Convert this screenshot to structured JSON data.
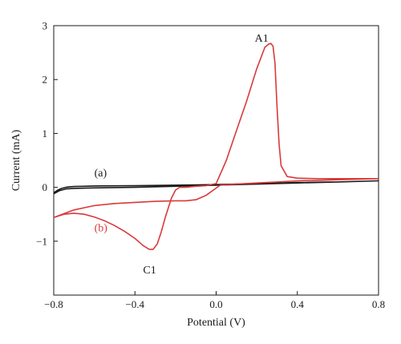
{
  "chart_data": {
    "type": "line",
    "xlabel": "Potential (V)",
    "ylabel": "Current (mA)",
    "xlim": [
      -0.8,
      0.8
    ],
    "ylim": [
      -2,
      3
    ],
    "xticks": [
      -0.8,
      -0.4,
      0.0,
      0.4,
      0.8
    ],
    "xtick_labels": [
      "−0.8",
      "−0.4",
      "0.0",
      "0.4",
      "0.8"
    ],
    "yticks": [
      -1,
      0,
      1,
      2,
      3
    ],
    "ytick_labels": [
      "−1",
      "0",
      "1",
      "2",
      "3"
    ],
    "grid": false,
    "series": [
      {
        "name": "(a)",
        "color": "#1a1a1a",
        "x": [
          -0.8,
          -0.78,
          -0.76,
          -0.74,
          -0.72,
          -0.7,
          -0.65,
          -0.6,
          -0.4,
          -0.2,
          0.0,
          0.2,
          0.4,
          0.6,
          0.8,
          0.6,
          0.4,
          0.2,
          0.0,
          -0.2,
          -0.4,
          -0.6,
          -0.7,
          -0.74,
          -0.77,
          -0.8
        ],
        "y": [
          -0.1,
          -0.05,
          -0.02,
          0.0,
          0.01,
          0.015,
          0.02,
          0.025,
          0.03,
          0.04,
          0.05,
          0.07,
          0.09,
          0.1,
          0.12,
          0.1,
          0.08,
          0.06,
          0.04,
          0.02,
          0.0,
          -0.01,
          -0.02,
          -0.03,
          -0.06,
          -0.12
        ],
        "label": "(a)",
        "label_x": -0.6,
        "label_y": 0.2
      },
      {
        "name": "(b)",
        "color": "#d93a3a",
        "x": [
          -0.8,
          -0.75,
          -0.7,
          -0.65,
          -0.6,
          -0.55,
          -0.5,
          -0.45,
          -0.4,
          -0.36,
          -0.33,
          -0.31,
          -0.29,
          -0.27,
          -0.25,
          -0.22,
          -0.2,
          -0.18,
          -0.15,
          -0.1,
          -0.05,
          0.0,
          0.05,
          0.1,
          0.15,
          0.2,
          0.24,
          0.26,
          0.27,
          0.28,
          0.29,
          0.3,
          0.31,
          0.32,
          0.35,
          0.4,
          0.5,
          0.6,
          0.7,
          0.8,
          0.7,
          0.6,
          0.5,
          0.4,
          0.3,
          0.2,
          0.1,
          0.02,
          -0.05,
          -0.1,
          -0.15,
          -0.2,
          -0.3,
          -0.4,
          -0.5,
          -0.6,
          -0.7,
          -0.8
        ],
        "y": [
          -0.56,
          -0.5,
          -0.48,
          -0.5,
          -0.55,
          -0.62,
          -0.71,
          -0.82,
          -0.95,
          -1.08,
          -1.15,
          -1.15,
          -1.05,
          -0.82,
          -0.55,
          -0.2,
          -0.05,
          0.0,
          0.0,
          0.02,
          0.03,
          0.07,
          0.5,
          1.05,
          1.6,
          2.2,
          2.6,
          2.66,
          2.67,
          2.62,
          2.3,
          1.5,
          0.8,
          0.4,
          0.2,
          0.17,
          0.16,
          0.16,
          0.16,
          0.16,
          0.15,
          0.14,
          0.13,
          0.12,
          0.1,
          0.08,
          0.06,
          0.04,
          -0.15,
          -0.23,
          -0.25,
          -0.25,
          -0.26,
          -0.28,
          -0.3,
          -0.34,
          -0.42,
          -0.56
        ],
        "label": "(b)",
        "label_x": -0.6,
        "label_y": -0.82
      }
    ],
    "annotations": [
      {
        "text": "A1",
        "x": 0.19,
        "y": 2.7
      },
      {
        "text": "C1",
        "x": -0.36,
        "y": -1.6
      }
    ]
  }
}
